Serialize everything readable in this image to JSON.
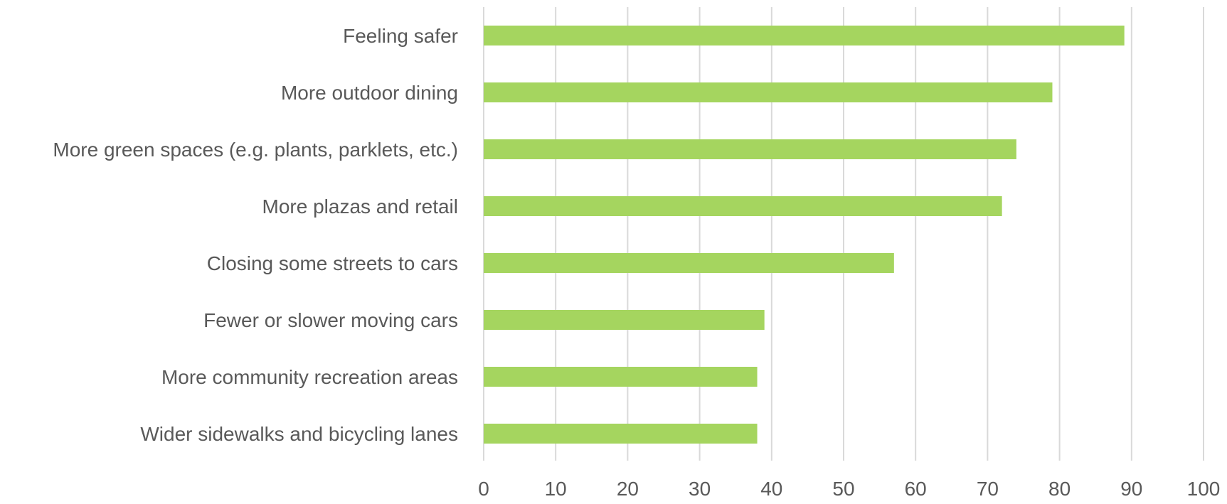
{
  "chart_data": {
    "type": "bar",
    "orientation": "horizontal",
    "categories": [
      "Feeling safer",
      "More outdoor dining",
      "More green spaces (e.g. plants, parklets, etc.)",
      "More plazas and retail",
      "Closing some streets to cars",
      "Fewer or slower moving cars",
      "More community recreation areas",
      "Wider sidewalks and bicycling lanes"
    ],
    "values": [
      89,
      79,
      74,
      72,
      57,
      39,
      38,
      38
    ],
    "xlim": [
      0,
      100
    ],
    "xticks": [
      0,
      10,
      20,
      30,
      40,
      50,
      60,
      70,
      80,
      90,
      100
    ],
    "grid": true,
    "legend": "none",
    "colors": {
      "bar": "#a5d55f",
      "grid": "#d9d9d9",
      "text": "#595959"
    }
  }
}
